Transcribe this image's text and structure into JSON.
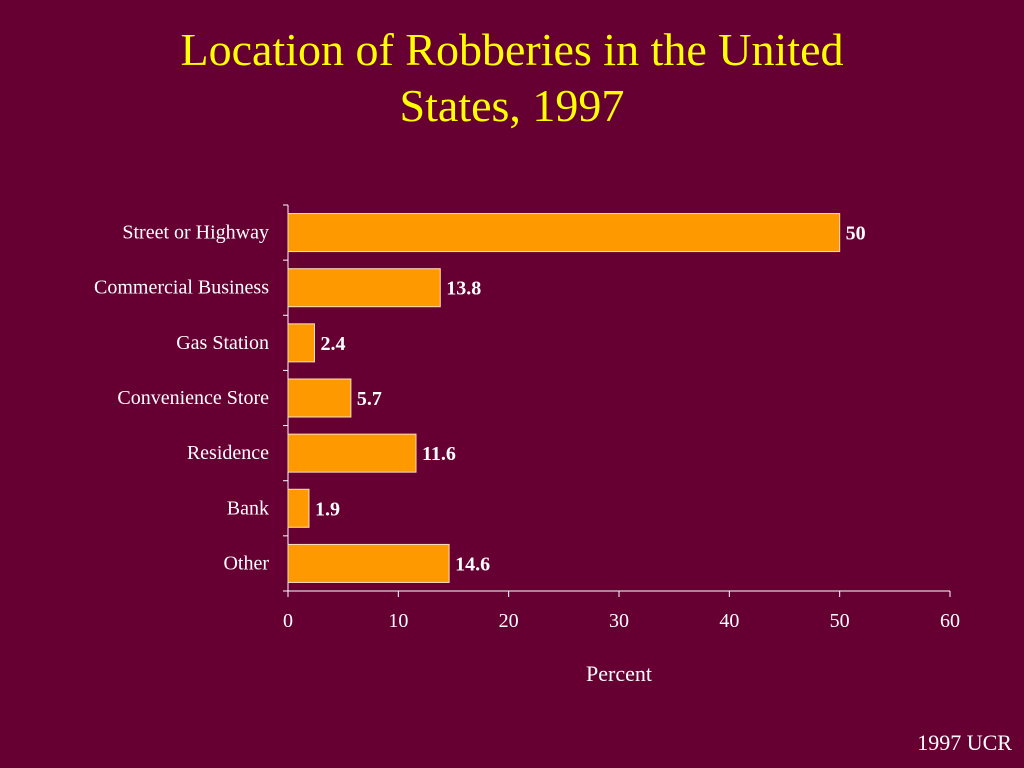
{
  "slide": {
    "title_line1": "Location of Robberies in the United",
    "title_line2": "States, 1997",
    "source": "1997 UCR"
  },
  "colors": {
    "background": "#660033",
    "title": "#FFFF00",
    "bar_fill": "#FF9900",
    "bar_stroke": "#FFE0C0",
    "text": "#FFFFFF",
    "axis": "#FFFFFF"
  },
  "chart_data": {
    "type": "bar",
    "orientation": "horizontal",
    "categories": [
      "Street or Highway",
      "Commercial Business",
      "Gas Station",
      "Convenience Store",
      "Residence",
      "Bank",
      "Other"
    ],
    "values": [
      50,
      13.8,
      2.4,
      5.7,
      11.6,
      1.9,
      14.6
    ],
    "data_labels": [
      "50",
      "13.8",
      "2.4",
      "5.7",
      "11.6",
      "1.9",
      "14.6"
    ],
    "xlabel": "Percent",
    "ylabel": "",
    "xlim": [
      0,
      60
    ],
    "xticks": [
      0,
      10,
      20,
      30,
      40,
      50,
      60
    ],
    "grid": false,
    "legend": "none"
  }
}
